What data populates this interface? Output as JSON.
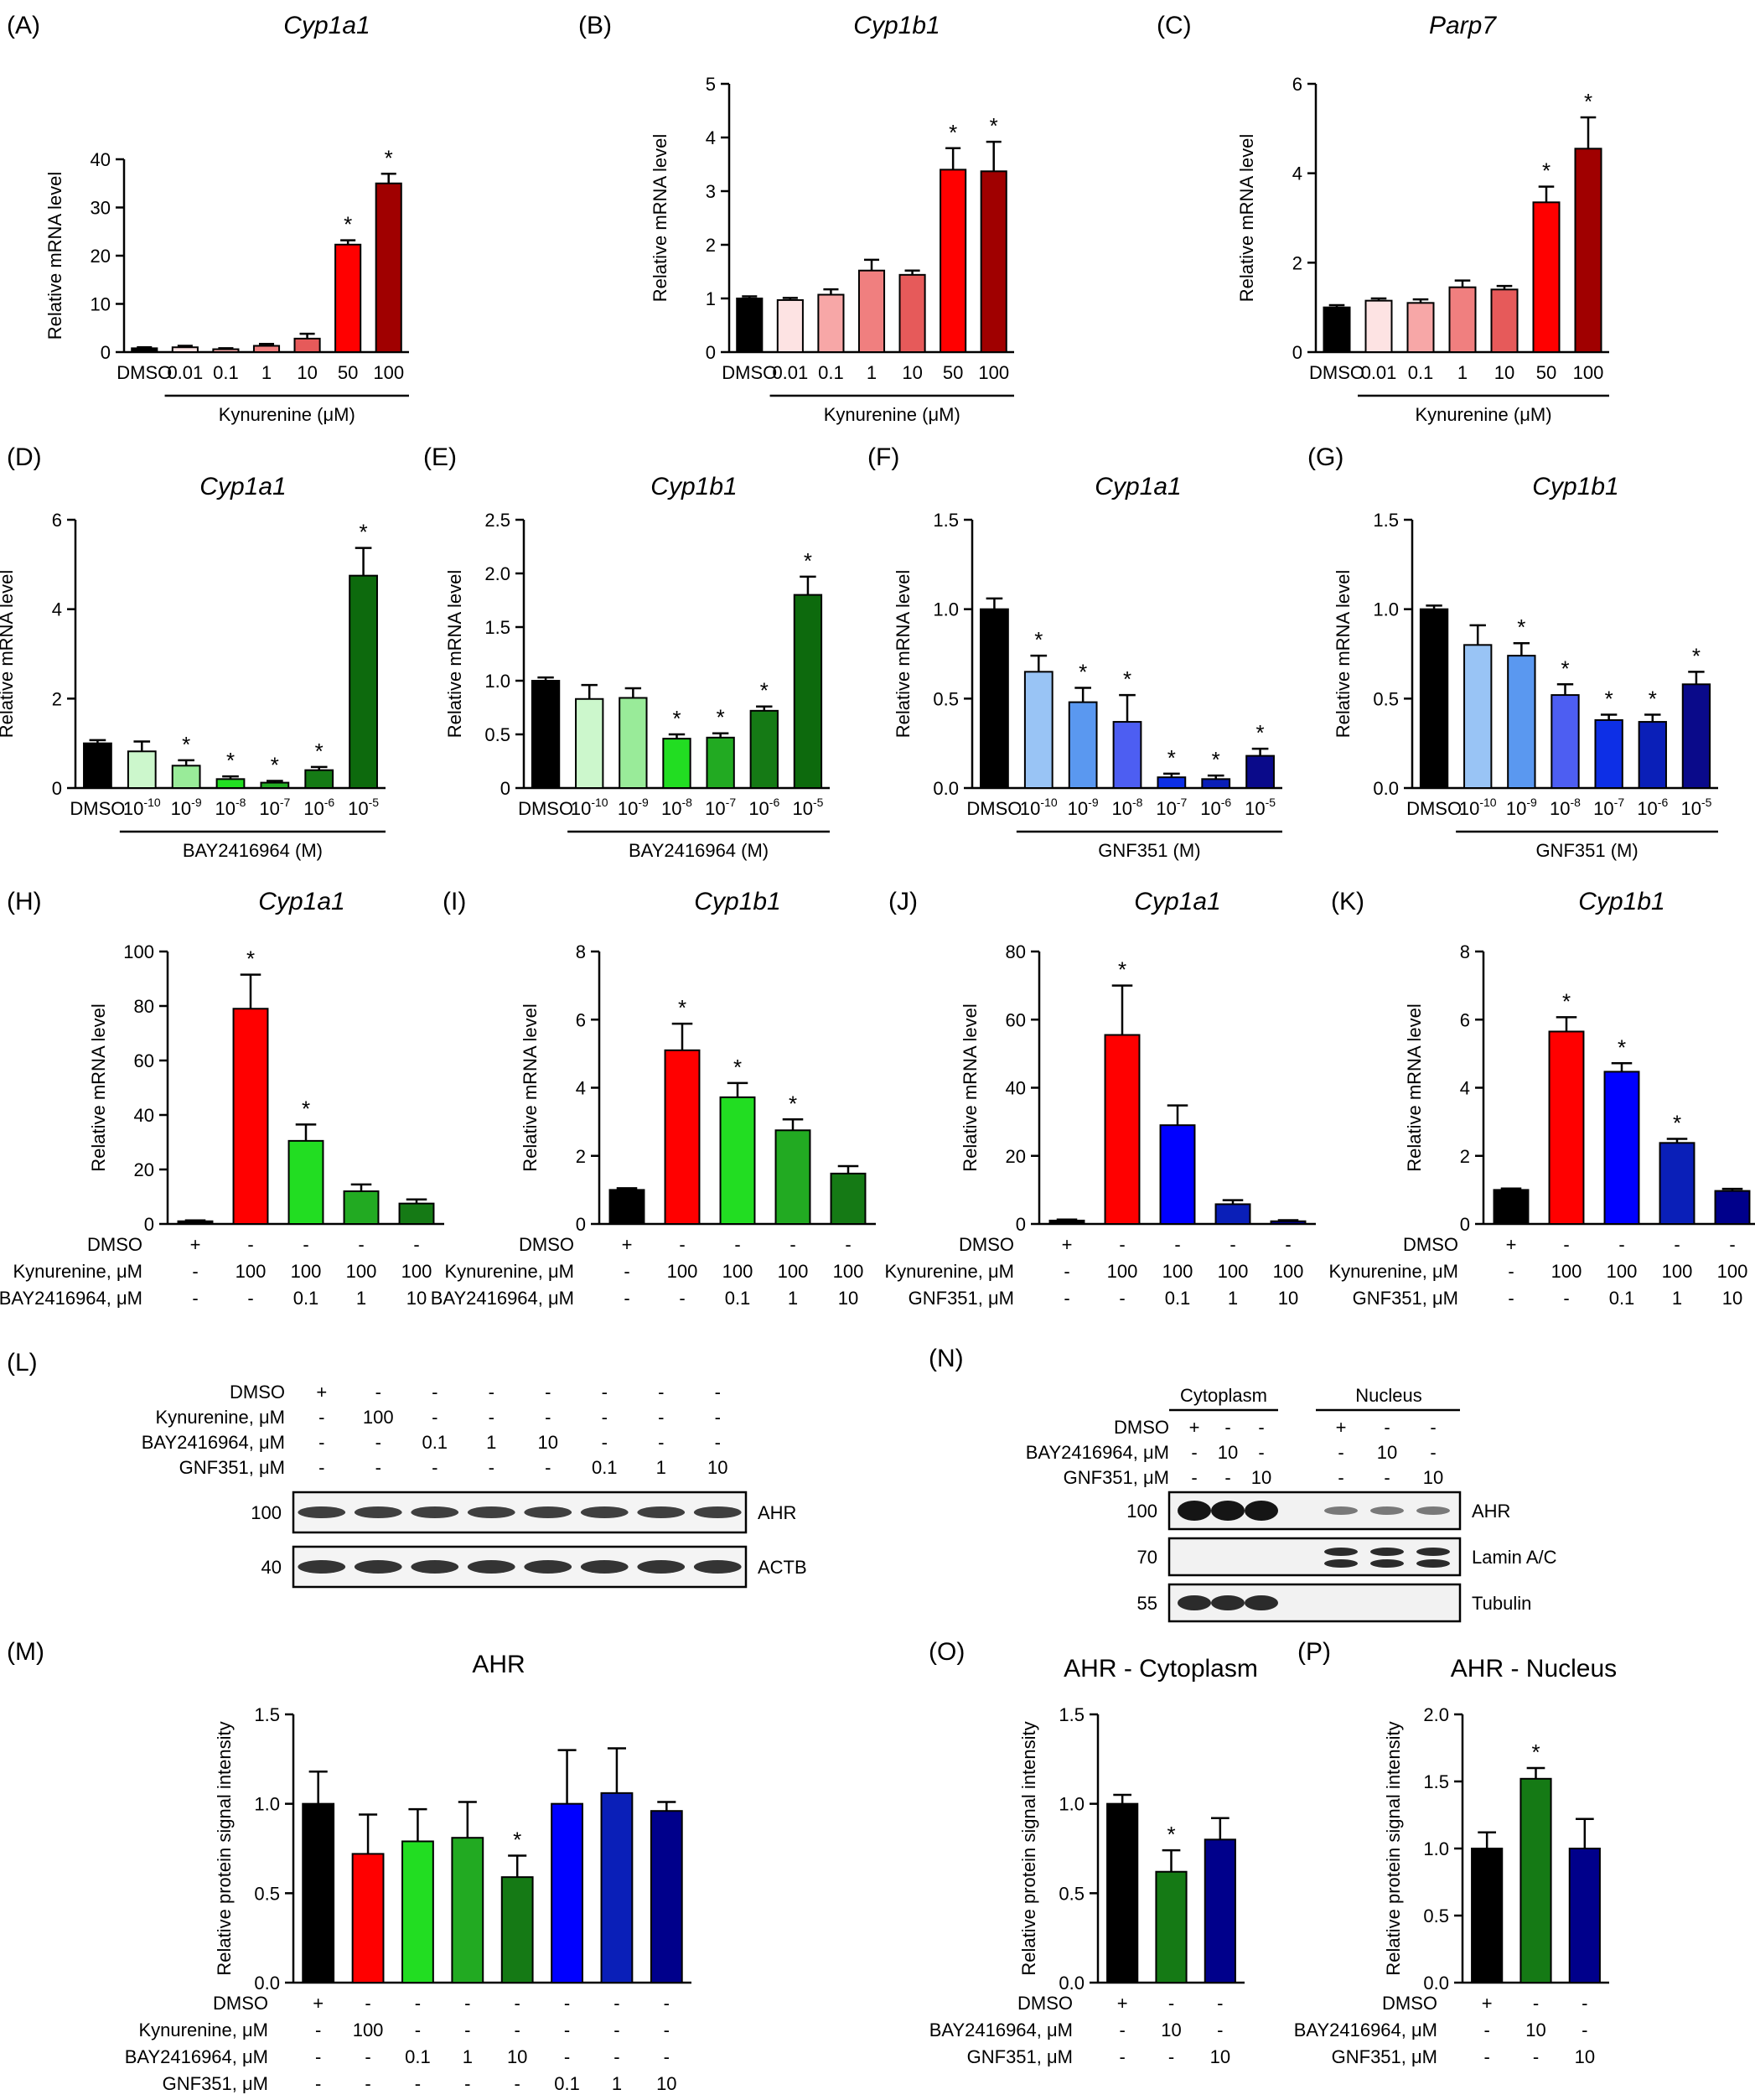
{
  "colors": {
    "black": "#000000",
    "pink1": "#fde3e3",
    "pink2": "#f7a7a7",
    "pink3": "#f07f7f",
    "pink4": "#e65a5a",
    "red": "#ff0000",
    "darkred": "#a00000",
    "g1": "#ccf7cc",
    "g2": "#99eb99",
    "g3": "#22dd22",
    "g4": "#22aa22",
    "g5": "#157a15",
    "g6": "#0d6a0d",
    "b1": "#99c4f5",
    "b2": "#5a98f0",
    "b3": "#4d5ef2",
    "b4": "#0d2fe6",
    "b5": "#0a1fb8",
    "b6": "#0a0a8a",
    "blue": "#0000ff",
    "navy": "#00008b"
  },
  "chart_data": [
    {
      "id": "A",
      "type": "bar",
      "panel_label": "(A)",
      "title": "Cyp1a1",
      "ylabel": "Relative mRNA level",
      "ylim": [
        0,
        40
      ],
      "yticks": [
        "0",
        "10",
        "20",
        "30",
        "40"
      ],
      "categories": [
        "DMSO",
        "0.01",
        "0.1",
        "1",
        "10",
        "50",
        "100"
      ],
      "values": [
        0.8,
        1.0,
        0.6,
        1.3,
        2.8,
        22.3,
        35.0
      ],
      "errors": [
        0.2,
        0.3,
        0.2,
        0.4,
        1.0,
        0.9,
        2.0
      ],
      "significant": [
        false,
        false,
        false,
        false,
        false,
        true,
        true
      ],
      "bracket_label": "Kynurenine (μM)",
      "colors": [
        "black",
        "pink1",
        "pink2",
        "pink3",
        "pink4",
        "red",
        "darkred"
      ]
    },
    {
      "id": "B",
      "type": "bar",
      "panel_label": "(B)",
      "title": "Cyp1b1",
      "ylabel": "Relative mRNA level",
      "ylim": [
        0,
        5
      ],
      "yticks": [
        "0",
        "1",
        "2",
        "3",
        "4",
        "5"
      ],
      "categories": [
        "DMSO",
        "0.01",
        "0.1",
        "1",
        "10",
        "50",
        "100"
      ],
      "values": [
        1.0,
        0.97,
        1.07,
        1.52,
        1.44,
        3.4,
        3.37
      ],
      "errors": [
        0.04,
        0.04,
        0.1,
        0.2,
        0.08,
        0.4,
        0.55
      ],
      "significant": [
        false,
        false,
        false,
        false,
        false,
        true,
        true
      ],
      "bracket_label": "Kynurenine (μM)",
      "colors": [
        "black",
        "pink1",
        "pink2",
        "pink3",
        "pink4",
        "red",
        "darkred"
      ]
    },
    {
      "id": "C",
      "type": "bar",
      "panel_label": "(C)",
      "title": "Parp7",
      "ylabel": "Relative mRNA level",
      "ylim": [
        0,
        6
      ],
      "yticks": [
        "0",
        "2",
        "4",
        "6"
      ],
      "categories": [
        "DMSO",
        "0.01",
        "0.1",
        "1",
        "10",
        "50",
        "100"
      ],
      "values": [
        1.0,
        1.15,
        1.1,
        1.45,
        1.4,
        3.35,
        4.55
      ],
      "errors": [
        0.05,
        0.05,
        0.08,
        0.15,
        0.08,
        0.35,
        0.7
      ],
      "significant": [
        false,
        false,
        false,
        false,
        false,
        true,
        true
      ],
      "bracket_label": "Kynurenine (μM)",
      "colors": [
        "black",
        "pink1",
        "pink2",
        "pink3",
        "pink4",
        "red",
        "darkred"
      ]
    },
    {
      "id": "D",
      "type": "bar",
      "panel_label": "(D)",
      "title": "Cyp1a1",
      "ylabel": "Relative mRNA level",
      "ylim": [
        0,
        6
      ],
      "yticks": [
        "0",
        "2",
        "4",
        "6"
      ],
      "categories": [
        "DMSO",
        "10",
        "10",
        "10",
        "10",
        "10",
        "10"
      ],
      "exponents": [
        "",
        "-10",
        "-9",
        "-8",
        "-7",
        "-6",
        "-5"
      ],
      "values": [
        1.0,
        0.82,
        0.5,
        0.2,
        0.12,
        0.4,
        4.75
      ],
      "errors": [
        0.07,
        0.22,
        0.12,
        0.06,
        0.04,
        0.07,
        0.62
      ],
      "significant": [
        false,
        false,
        true,
        true,
        true,
        true,
        true
      ],
      "bracket_label": "BAY2416964 (M)",
      "colors": [
        "black",
        "g1",
        "g2",
        "g3",
        "g4",
        "g5",
        "g6"
      ]
    },
    {
      "id": "E",
      "type": "bar",
      "panel_label": "(E)",
      "title": "Cyp1b1",
      "ylabel": "Relative mRNA level",
      "ylim": [
        0,
        2.5
      ],
      "yticks": [
        "0",
        "0.5",
        "1.0",
        "1.5",
        "2.0",
        "2.5"
      ],
      "categories": [
        "DMSO",
        "10",
        "10",
        "10",
        "10",
        "10",
        "10"
      ],
      "exponents": [
        "",
        "-10",
        "-9",
        "-8",
        "-7",
        "-6",
        "-5"
      ],
      "values": [
        1.0,
        0.83,
        0.84,
        0.46,
        0.47,
        0.72,
        1.8
      ],
      "errors": [
        0.03,
        0.13,
        0.09,
        0.04,
        0.04,
        0.04,
        0.17
      ],
      "significant": [
        false,
        false,
        false,
        true,
        true,
        true,
        true
      ],
      "bracket_label": "BAY2416964 (M)",
      "colors": [
        "black",
        "g1",
        "g2",
        "g3",
        "g4",
        "g5",
        "g6"
      ]
    },
    {
      "id": "F",
      "type": "bar",
      "panel_label": "(F)",
      "title": "Cyp1a1",
      "ylabel": "Relative mRNA level",
      "ylim": [
        0,
        1.5
      ],
      "yticks": [
        "0.0",
        "0.5",
        "1.0",
        "1.5"
      ],
      "categories": [
        "DMSO",
        "10",
        "10",
        "10",
        "10",
        "10",
        "10"
      ],
      "exponents": [
        "",
        "-10",
        "-9",
        "-8",
        "-7",
        "-6",
        "-5"
      ],
      "values": [
        1.0,
        0.65,
        0.48,
        0.37,
        0.06,
        0.05,
        0.18
      ],
      "errors": [
        0.06,
        0.09,
        0.08,
        0.15,
        0.02,
        0.02,
        0.04
      ],
      "significant": [
        false,
        true,
        true,
        true,
        true,
        true,
        true
      ],
      "bracket_label": "GNF351 (M)",
      "colors": [
        "black",
        "b1",
        "b2",
        "b3",
        "b4",
        "b5",
        "b6"
      ]
    },
    {
      "id": "G",
      "type": "bar",
      "panel_label": "(G)",
      "title": "Cyp1b1",
      "ylabel": "Relative mRNA level",
      "ylim": [
        0,
        1.5
      ],
      "yticks": [
        "0.0",
        "0.5",
        "1.0",
        "1.5"
      ],
      "categories": [
        "DMSO",
        "10",
        "10",
        "10",
        "10",
        "10",
        "10"
      ],
      "exponents": [
        "",
        "-10",
        "-9",
        "-8",
        "-7",
        "-6",
        "-5"
      ],
      "values": [
        1.0,
        0.8,
        0.74,
        0.52,
        0.38,
        0.37,
        0.58
      ],
      "errors": [
        0.02,
        0.11,
        0.07,
        0.06,
        0.03,
        0.04,
        0.07
      ],
      "significant": [
        false,
        false,
        true,
        true,
        true,
        true,
        true
      ],
      "bracket_label": "GNF351 (M)",
      "colors": [
        "black",
        "b1",
        "b2",
        "b3",
        "b4",
        "b5",
        "b6"
      ]
    },
    {
      "id": "H",
      "type": "bar",
      "panel_label": "(H)",
      "title": "Cyp1a1",
      "ylabel": "Relative mRNA level",
      "ylim": [
        0,
        100
      ],
      "yticks": [
        "0",
        "20",
        "40",
        "60",
        "80",
        "100"
      ],
      "values": [
        1.0,
        79.0,
        30.5,
        12.0,
        7.5
      ],
      "errors": [
        0.3,
        12.5,
        6.0,
        2.5,
        1.5
      ],
      "significant": [
        false,
        true,
        true,
        false,
        false
      ],
      "colors": [
        "black",
        "red",
        "g3",
        "g4",
        "g5"
      ],
      "rows": [
        {
          "label": "DMSO",
          "cells": [
            "+",
            "-",
            "-",
            "-",
            "-"
          ]
        },
        {
          "label": "Kynurenine, μM",
          "cells": [
            "-",
            "100",
            "100",
            "100",
            "100"
          ]
        },
        {
          "label": "BAY2416964, μM",
          "cells": [
            "-",
            "-",
            "0.1",
            "1",
            "10"
          ]
        }
      ]
    },
    {
      "id": "I",
      "type": "bar",
      "panel_label": "(I)",
      "title": "Cyp1b1",
      "ylabel": "Relative mRNA level",
      "ylim": [
        0,
        8
      ],
      "yticks": [
        "0",
        "2",
        "4",
        "6",
        "8"
      ],
      "values": [
        1.0,
        5.1,
        3.72,
        2.75,
        1.48
      ],
      "errors": [
        0.05,
        0.78,
        0.42,
        0.32,
        0.22
      ],
      "significant": [
        false,
        true,
        true,
        true,
        false
      ],
      "colors": [
        "black",
        "red",
        "g3",
        "g4",
        "g5"
      ],
      "rows": [
        {
          "label": "DMSO",
          "cells": [
            "+",
            "-",
            "-",
            "-",
            "-"
          ]
        },
        {
          "label": "Kynurenine, μM",
          "cells": [
            "-",
            "100",
            "100",
            "100",
            "100"
          ]
        },
        {
          "label": "BAY2416964, μM",
          "cells": [
            "-",
            "-",
            "0.1",
            "1",
            "10"
          ]
        }
      ]
    },
    {
      "id": "J",
      "type": "bar",
      "panel_label": "(J)",
      "title": "Cyp1a1",
      "ylabel": "Relative mRNA level",
      "ylim": [
        0,
        80
      ],
      "yticks": [
        "0",
        "20",
        "40",
        "60",
        "80"
      ],
      "values": [
        1.0,
        55.5,
        29.0,
        5.8,
        0.8
      ],
      "errors": [
        0.3,
        14.5,
        5.8,
        1.2,
        0.3
      ],
      "significant": [
        false,
        true,
        false,
        false,
        false
      ],
      "colors": [
        "black",
        "red",
        "blue",
        "b5",
        "navy"
      ],
      "rows": [
        {
          "label": "DMSO",
          "cells": [
            "+",
            "-",
            "-",
            "-",
            "-"
          ]
        },
        {
          "label": "Kynurenine, μM",
          "cells": [
            "-",
            "100",
            "100",
            "100",
            "100"
          ]
        },
        {
          "label": "GNF351, μM",
          "cells": [
            "-",
            "-",
            "0.1",
            "1",
            "10"
          ]
        }
      ]
    },
    {
      "id": "K",
      "type": "bar",
      "panel_label": "(K)",
      "title": "Cyp1b1",
      "ylabel": "Relative mRNA level",
      "ylim": [
        0,
        8
      ],
      "yticks": [
        "0",
        "2",
        "4",
        "6",
        "8"
      ],
      "values": [
        1.0,
        5.65,
        4.47,
        2.38,
        0.97
      ],
      "errors": [
        0.04,
        0.42,
        0.25,
        0.12,
        0.06
      ],
      "significant": [
        false,
        true,
        true,
        true,
        false
      ],
      "colors": [
        "black",
        "red",
        "blue",
        "b5",
        "navy"
      ],
      "rows": [
        {
          "label": "DMSO",
          "cells": [
            "+",
            "-",
            "-",
            "-",
            "-"
          ]
        },
        {
          "label": "Kynurenine, μM",
          "cells": [
            "-",
            "100",
            "100",
            "100",
            "100"
          ]
        },
        {
          "label": "GNF351, μM",
          "cells": [
            "-",
            "-",
            "0.1",
            "1",
            "10"
          ]
        }
      ]
    },
    {
      "id": "M",
      "type": "bar",
      "panel_label": "(M)",
      "title": "AHR",
      "ylabel": "Relative protein signal intensity",
      "ylim": [
        0,
        1.5
      ],
      "yticks": [
        "0.0",
        "0.5",
        "1.0",
        "1.5"
      ],
      "values": [
        1.0,
        0.72,
        0.79,
        0.81,
        0.59,
        1.0,
        1.06,
        0.96
      ],
      "errors": [
        0.18,
        0.22,
        0.18,
        0.2,
        0.12,
        0.3,
        0.25,
        0.05
      ],
      "significant": [
        false,
        false,
        false,
        false,
        true,
        false,
        false,
        false
      ],
      "colors": [
        "black",
        "red",
        "g3",
        "g4",
        "g5",
        "blue",
        "b5",
        "navy"
      ],
      "rows": [
        {
          "label": "DMSO",
          "cells": [
            "+",
            "-",
            "-",
            "-",
            "-",
            "-",
            "-",
            "-"
          ]
        },
        {
          "label": "Kynurenine, μM",
          "cells": [
            "-",
            "100",
            "-",
            "-",
            "-",
            "-",
            "-",
            "-"
          ]
        },
        {
          "label": "BAY2416964, μM",
          "cells": [
            "-",
            "-",
            "0.1",
            "1",
            "10",
            "-",
            "-",
            "-"
          ]
        },
        {
          "label": "GNF351, μM",
          "cells": [
            "-",
            "-",
            "-",
            "-",
            "-",
            "0.1",
            "1",
            "10"
          ]
        }
      ]
    },
    {
      "id": "O",
      "type": "bar",
      "panel_label": "(O)",
      "title": "AHR - Cytoplasm",
      "ylabel": "Relative protein signal intensity",
      "ylim": [
        0,
        1.5
      ],
      "yticks": [
        "0.0",
        "0.5",
        "1.0",
        "1.5"
      ],
      "values": [
        1.0,
        0.62,
        0.8
      ],
      "errors": [
        0.05,
        0.12,
        0.12
      ],
      "significant": [
        false,
        true,
        false
      ],
      "colors": [
        "black",
        "g5",
        "navy"
      ],
      "rows": [
        {
          "label": "DMSO",
          "cells": [
            "+",
            "-",
            "-"
          ]
        },
        {
          "label": "BAY2416964, μM",
          "cells": [
            "-",
            "10",
            "-"
          ]
        },
        {
          "label": "GNF351, μM",
          "cells": [
            "-",
            "-",
            "10"
          ]
        }
      ]
    },
    {
      "id": "P",
      "type": "bar",
      "panel_label": "(P)",
      "title": "AHR - Nucleus",
      "ylabel": "Relative protein signal intensity",
      "ylim": [
        0,
        2.0
      ],
      "yticks": [
        "0.0",
        "0.5",
        "1.0",
        "1.5",
        "2.0"
      ],
      "values": [
        1.0,
        1.52,
        1.0
      ],
      "errors": [
        0.12,
        0.08,
        0.22
      ],
      "significant": [
        false,
        true,
        false
      ],
      "colors": [
        "black",
        "g5",
        "navy"
      ],
      "rows": [
        {
          "label": "DMSO",
          "cells": [
            "+",
            "-",
            "-"
          ]
        },
        {
          "label": "BAY2416964, μM",
          "cells": [
            "-",
            "10",
            "-"
          ]
        },
        {
          "label": "GNF351, μM",
          "cells": [
            "-",
            "-",
            "10"
          ]
        }
      ]
    }
  ],
  "blots": {
    "L": {
      "panel_label": "(L)",
      "rows": [
        {
          "label": "DMSO",
          "cells": [
            "+",
            "-",
            "-",
            "-",
            "-",
            "-",
            "-",
            "-"
          ]
        },
        {
          "label": "Kynurenine, μM",
          "cells": [
            "-",
            "100",
            "-",
            "-",
            "-",
            "-",
            "-",
            "-"
          ]
        },
        {
          "label": "BAY2416964, μM",
          "cells": [
            "-",
            "-",
            "0.1",
            "1",
            "10",
            "-",
            "-",
            "-"
          ]
        },
        {
          "label": "GNF351, μM",
          "cells": [
            "-",
            "-",
            "-",
            "-",
            "-",
            "0.1",
            "1",
            "10"
          ]
        }
      ],
      "strips": [
        {
          "marker": "100",
          "protein": "AHR"
        },
        {
          "marker": "40",
          "protein": "ACTB"
        }
      ]
    },
    "N": {
      "panel_label": "(N)",
      "groups": [
        "Cytoplasm",
        "Nucleus"
      ],
      "rows": [
        {
          "label": "DMSO",
          "cells": [
            "+",
            "-",
            "-",
            "+",
            "-",
            "-"
          ]
        },
        {
          "label": "BAY2416964, μM",
          "cells": [
            "-",
            "10",
            "-",
            "-",
            "10",
            "-"
          ]
        },
        {
          "label": "GNF351, μM",
          "cells": [
            "-",
            "-",
            "10",
            "-",
            "-",
            "10"
          ]
        }
      ],
      "strips": [
        {
          "marker": "100",
          "protein": "AHR"
        },
        {
          "marker": "70",
          "protein": "Lamin A/C"
        },
        {
          "marker": "55",
          "protein": "Tubulin"
        }
      ]
    }
  }
}
